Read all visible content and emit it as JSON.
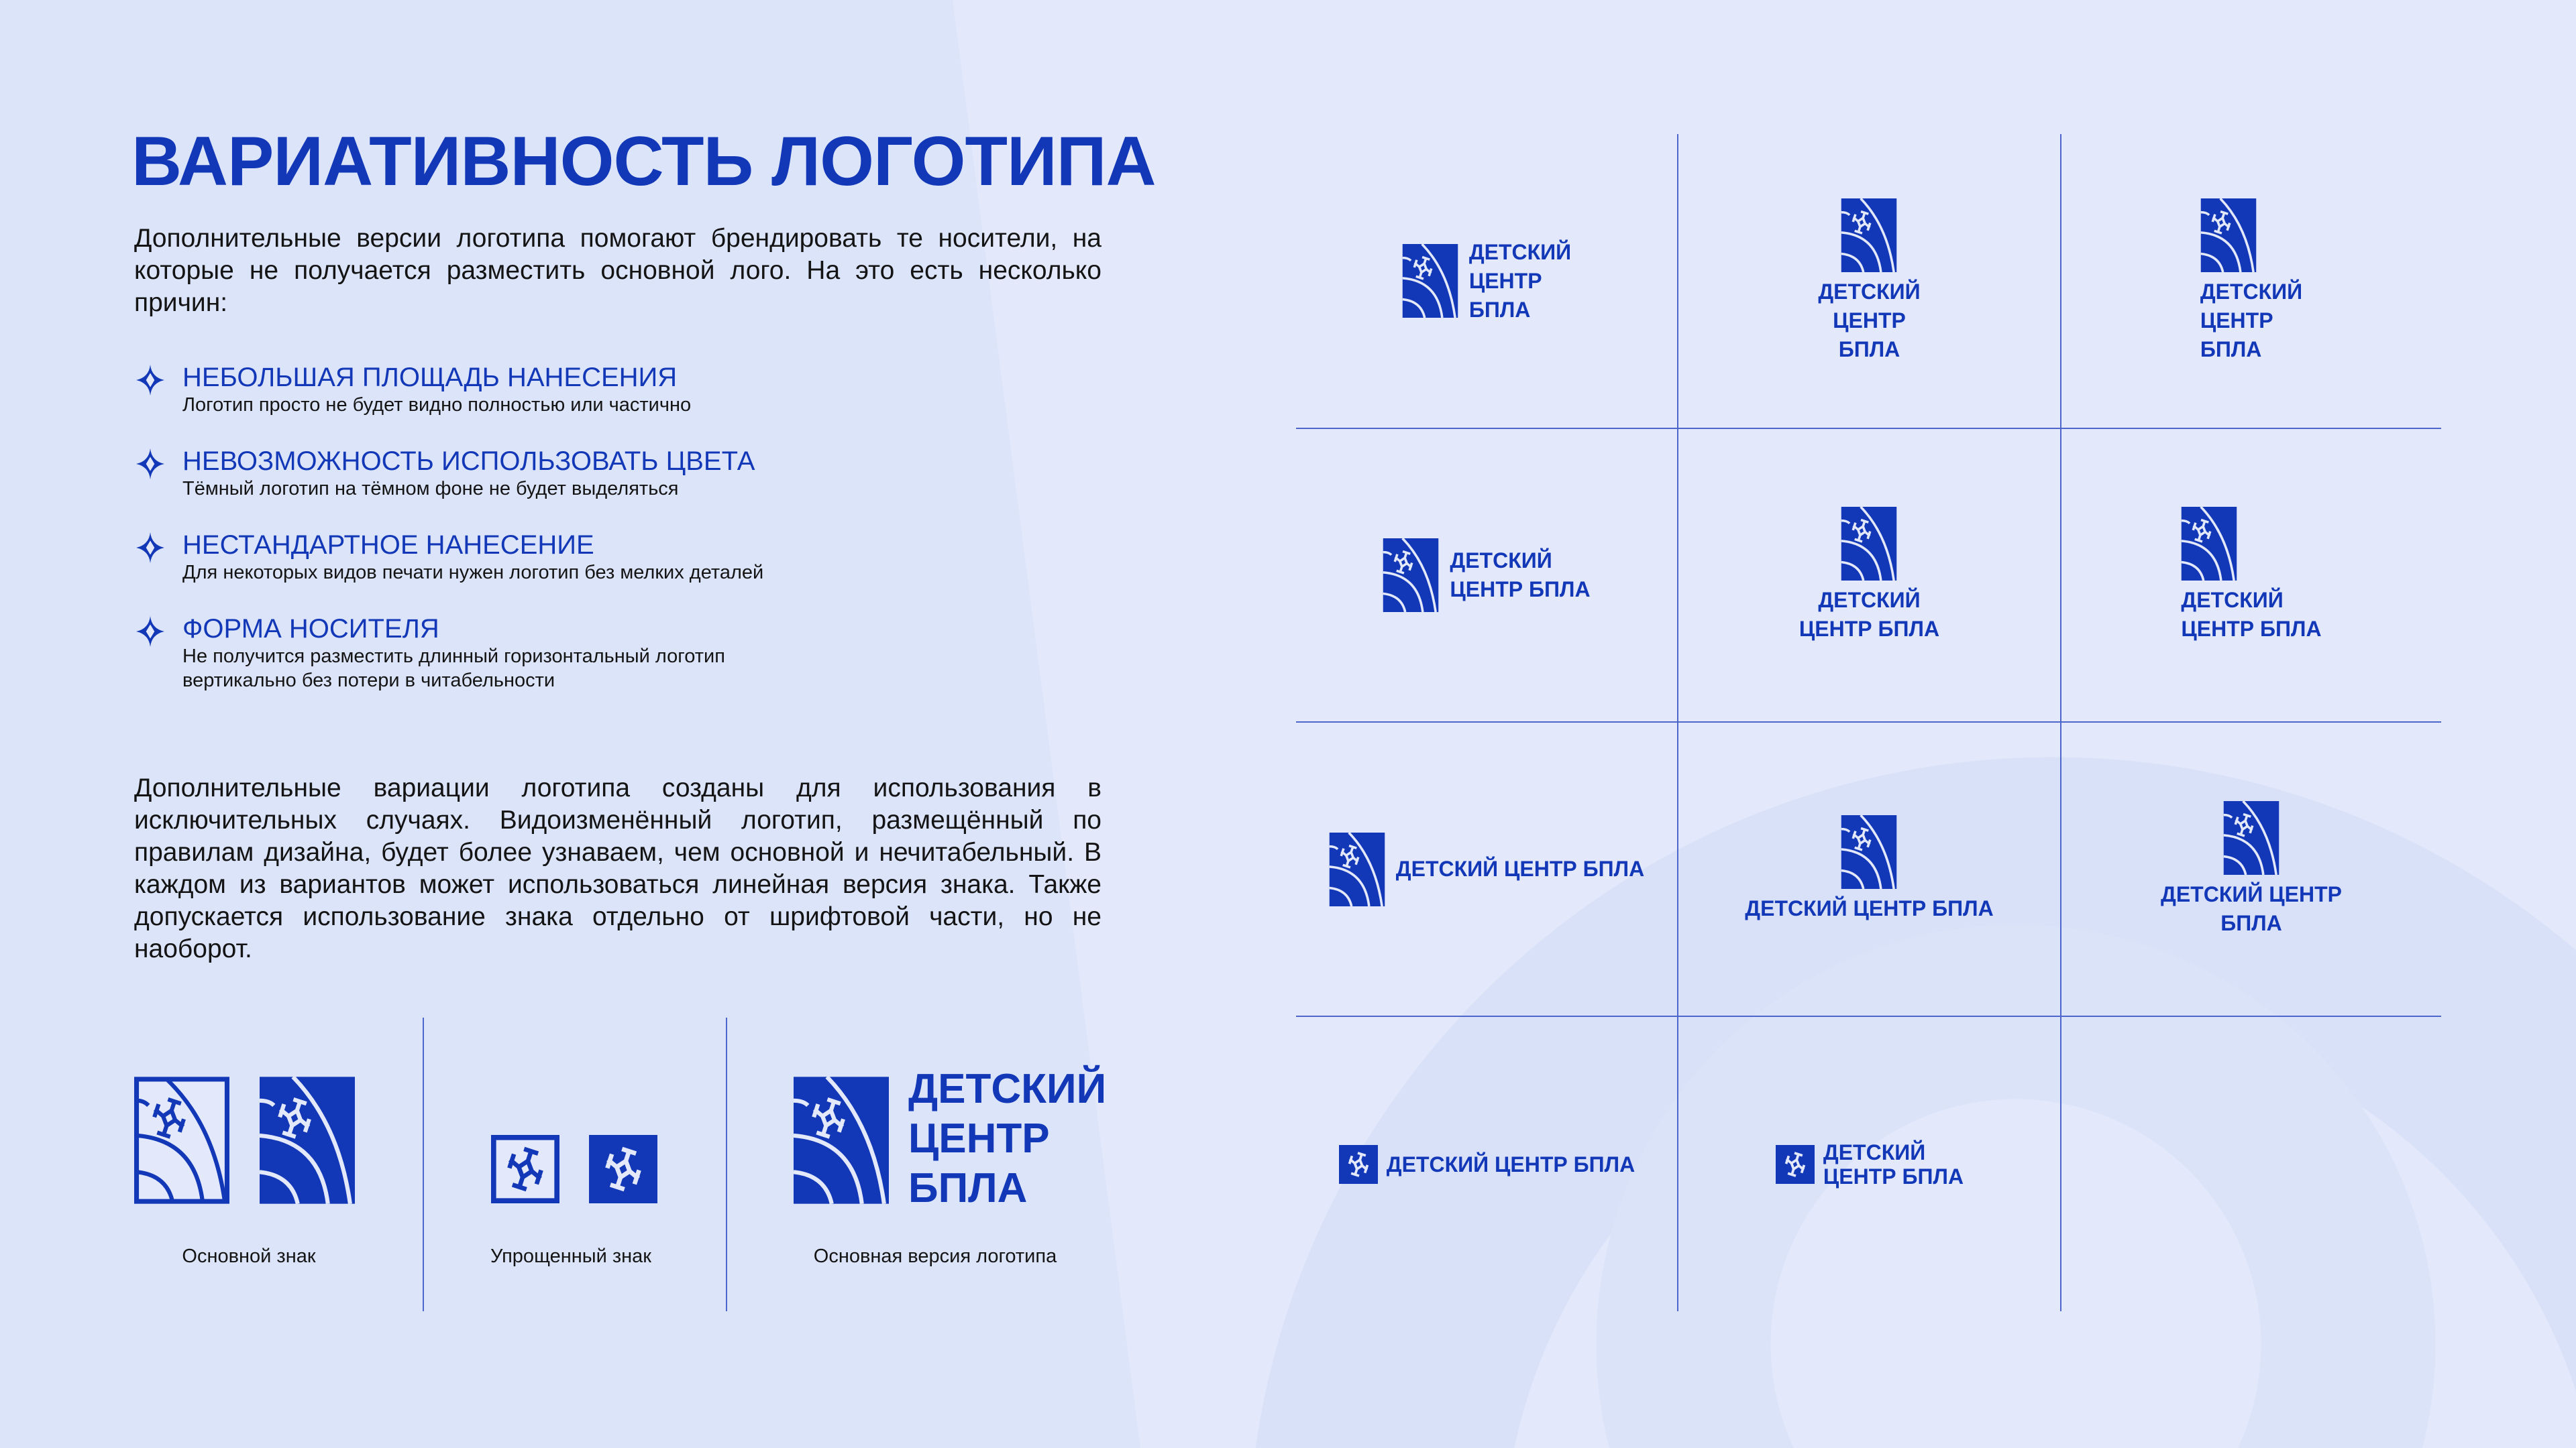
{
  "title": "ВАРИАТИВНОСТЬ ЛОГОТИПА",
  "intro": "Дополнительные версии логотипа помогают брендировать те носители, на которые не получается разместить основной лого. На это есть несколько причин:",
  "reasons": [
    {
      "heading": "НЕБОЛЬШАЯ ПЛОЩАДЬ НАНЕСЕНИЯ",
      "desc": "Логотип просто не будет видно полностью или частично"
    },
    {
      "heading": "НЕВОЗМОЖНОСТЬ ИСПОЛЬЗОВАТЬ ЦВЕТА",
      "desc": "Тёмный логотип на тёмном фоне не будет выделяться"
    },
    {
      "heading": "НЕСТАНДАРТНОЕ НАНЕСЕНИЕ",
      "desc": "Для некоторых видов печати нужен логотип без мелких деталей"
    },
    {
      "heading": "ФОРМА НОСИТЕЛЯ",
      "desc": "Не получится разместить длинный горизонтальный логотип вертикально без потери в читабельности"
    }
  ],
  "closing": "Дополнительные вариации логотипа созданы для использования в исключительных случаях. Видоизменённый логотип, размещённый по правилам дизайна, будет более узнаваем, чем основной и нечитабель­ный. В каждом из вариантов может использоваться линейная версия знака. Также допускается использование знака отдельно от шрифтовой части, но не наоборот.",
  "signs": {
    "main_label": "Основной знак",
    "simplified_label": "Упрощенный знак",
    "logo_label": "Основная версия логотипа"
  },
  "logo_text": [
    "ДЕТСКИЙ",
    "ЦЕНТР",
    "БПЛА"
  ],
  "variants": [
    {
      "lines": [
        "ДЕТСКИЙ",
        "ЦЕНТР",
        "БПЛА"
      ]
    },
    {
      "lines": [
        "ДЕТСКИЙ",
        "ЦЕНТР",
        "БПЛА"
      ]
    },
    {
      "lines": [
        "ДЕТСКИЙ",
        "ЦЕНТР",
        "БПЛА"
      ]
    },
    {
      "lines": [
        "ДЕТСКИЙ",
        "ЦЕНТР БПЛА"
      ]
    },
    {
      "lines": [
        "ДЕТСКИЙ",
        "ЦЕНТР БПЛА"
      ]
    },
    {
      "lines": [
        "ДЕТСКИЙ",
        "ЦЕНТР БПЛА"
      ]
    },
    {
      "lines": [
        "ДЕТСКИЙ ЦЕНТР БПЛА"
      ]
    },
    {
      "lines": [
        "ДЕТСКИЙ ЦЕНТР БПЛА"
      ]
    },
    {
      "lines": [
        "ДЕТСКИЙ ЦЕНТР",
        "БПЛА"
      ]
    },
    {
      "lines": [
        "ДЕТСКИЙ ЦЕНТР БПЛА"
      ]
    },
    {
      "lines": [
        "ДЕТСКИЙ",
        "ЦЕНТР БПЛА"
      ]
    }
  ],
  "colors": {
    "brand_blue": "#1238b8",
    "background": "#e3e9fb",
    "text": "#141414"
  },
  "icons": [
    "star-bullet-icon",
    "sign-filled-icon",
    "sign-outline-icon",
    "sign-simple-filled-icon",
    "sign-simple-outline-icon"
  ]
}
